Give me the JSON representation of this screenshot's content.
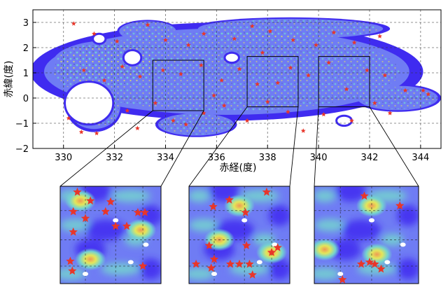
{
  "chart_data": {
    "type": "heatmap",
    "title": "",
    "xlabel": "赤経(度)",
    "ylabel": "赤緯(度)",
    "xlim": [
      328.8,
      344.8
    ],
    "ylim": [
      -2,
      3.5
    ],
    "xticks": [
      330,
      332,
      334,
      336,
      338,
      340,
      342,
      344
    ],
    "yticks": [
      -2,
      -1,
      0,
      1,
      2,
      3
    ],
    "grid": true,
    "colormap": [
      "#3f2bf0",
      "#6f7cf4",
      "#74d3cf",
      "#e3e65a",
      "#ef9a55"
    ],
    "marker_color": "#e8362a",
    "footprint_blobs": [
      {
        "cx": 336.4,
        "cy": 1.05,
        "rx": 7.7,
        "ry": 1.95
      },
      {
        "cx": 331.7,
        "cy": 1.35,
        "rx": 2.3,
        "ry": 1.05
      },
      {
        "cx": 331.2,
        "cy": -0.35,
        "rx": 1.1,
        "ry": 1.0
      },
      {
        "cx": 343.1,
        "cy": 0.0,
        "rx": 1.7,
        "ry": 0.55
      },
      {
        "cx": 333.3,
        "cy": 2.65,
        "rx": 1.2,
        "ry": 0.45
      },
      {
        "cx": 338.9,
        "cy": 2.75,
        "rx": 3.9,
        "ry": 0.45
      },
      {
        "cx": 335.2,
        "cy": -1.05,
        "rx": 1.6,
        "ry": 0.5
      }
    ],
    "footprint_holes": [
      {
        "cx": 331.0,
        "cy": -0.2,
        "rx": 0.95,
        "ry": 0.85
      },
      {
        "cx": 332.7,
        "cy": 1.6,
        "rx": 0.35,
        "ry": 0.3
      },
      {
        "cx": 331.4,
        "cy": 2.35,
        "rx": 0.25,
        "ry": 0.2
      },
      {
        "cx": 336.6,
        "cy": 1.6,
        "rx": 0.28,
        "ry": 0.2
      },
      {
        "cx": 341.0,
        "cy": -0.9,
        "rx": 0.3,
        "ry": 0.2
      }
    ],
    "stars": [
      [
        330.4,
        2.95
      ],
      [
        331.2,
        2.55
      ],
      [
        332.1,
        2.25
      ],
      [
        333.3,
        2.9
      ],
      [
        334.0,
        2.3
      ],
      [
        334.9,
        2.1
      ],
      [
        335.5,
        2.55
      ],
      [
        336.7,
        2.35
      ],
      [
        337.4,
        2.85
      ],
      [
        338.1,
        2.65
      ],
      [
        339.0,
        2.3
      ],
      [
        339.9,
        2.1
      ],
      [
        340.6,
        2.6
      ],
      [
        341.4,
        2.2
      ],
      [
        342.4,
        2.45
      ],
      [
        330.8,
        1.1
      ],
      [
        331.6,
        0.7
      ],
      [
        332.3,
        1.25
      ],
      [
        333.0,
        0.85
      ],
      [
        333.9,
        1.1
      ],
      [
        334.6,
        0.95
      ],
      [
        335.4,
        1.3
      ],
      [
        336.2,
        0.7
      ],
      [
        336.9,
        1.15
      ],
      [
        337.6,
        0.55
      ],
      [
        338.4,
        0.6
      ],
      [
        338.9,
        1.2
      ],
      [
        339.6,
        0.9
      ],
      [
        340.4,
        1.4
      ],
      [
        341.1,
        0.35
      ],
      [
        341.9,
        1.1
      ],
      [
        342.6,
        0.9
      ],
      [
        343.4,
        0.3
      ],
      [
        344.1,
        0.3
      ],
      [
        344.3,
        0.15
      ],
      [
        330.2,
        -0.8
      ],
      [
        330.7,
        -1.35
      ],
      [
        331.3,
        -1.4
      ],
      [
        332.5,
        -0.5
      ],
      [
        333.6,
        -0.2
      ],
      [
        334.3,
        -0.9
      ],
      [
        334.8,
        -1.05
      ],
      [
        335.5,
        -0.6
      ],
      [
        336.3,
        -0.3
      ],
      [
        337.2,
        -0.9
      ],
      [
        338.0,
        -0.15
      ],
      [
        338.8,
        -0.55
      ],
      [
        339.4,
        -1.3
      ],
      [
        340.2,
        -0.65
      ],
      [
        341.3,
        -0.9
      ],
      [
        342.2,
        -0.2
      ],
      [
        342.8,
        -0.6
      ],
      [
        332.9,
        -1.2
      ],
      [
        335.9,
        0.1
      ],
      [
        337.8,
        1.8
      ]
    ],
    "zoom_regions": [
      {
        "name": "inset-1",
        "xlim": [
          333.5,
          335.5
        ],
        "ylim": [
          -0.5,
          1.5
        ]
      },
      {
        "name": "inset-2",
        "xlim": [
          337.2,
          339.2
        ],
        "ylim": [
          -0.35,
          1.65
        ]
      },
      {
        "name": "inset-3",
        "xlim": [
          340.0,
          342.0
        ],
        "ylim": [
          -0.35,
          1.65
        ]
      }
    ],
    "insets": [
      {
        "name": "inset-1",
        "hotspots": [
          [
            0.2,
            0.15
          ],
          [
            0.8,
            0.45
          ],
          [
            0.3,
            0.75
          ]
        ],
        "stars": [
          [
            0.17,
            0.06
          ],
          [
            0.3,
            0.15
          ],
          [
            0.13,
            0.26
          ],
          [
            0.45,
            0.26
          ],
          [
            0.5,
            0.16
          ],
          [
            0.25,
            0.33
          ],
          [
            0.13,
            0.47
          ],
          [
            0.55,
            0.41
          ],
          [
            0.77,
            0.27
          ],
          [
            0.84,
            0.27
          ],
          [
            0.66,
            0.41
          ],
          [
            0.1,
            0.77
          ],
          [
            0.12,
            0.87
          ],
          [
            0.82,
            0.82
          ]
        ]
      },
      {
        "name": "inset-2",
        "hotspots": [
          [
            0.82,
            0.68
          ],
          [
            0.3,
            0.55
          ],
          [
            0.5,
            0.2
          ]
        ],
        "stars": [
          [
            0.77,
            0.06
          ],
          [
            0.4,
            0.14
          ],
          [
            0.24,
            0.21
          ],
          [
            0.56,
            0.27
          ],
          [
            0.88,
            0.63
          ],
          [
            0.82,
            0.68
          ],
          [
            0.2,
            0.61
          ],
          [
            0.57,
            0.61
          ],
          [
            0.25,
            0.75
          ],
          [
            0.07,
            0.8
          ],
          [
            0.22,
            0.84
          ],
          [
            0.41,
            0.8
          ],
          [
            0.5,
            0.8
          ],
          [
            0.6,
            0.8
          ],
          [
            0.63,
            0.91
          ]
        ]
      },
      {
        "name": "inset-3",
        "hotspots": [
          [
            0.55,
            0.2
          ],
          [
            0.1,
            0.65
          ],
          [
            0.6,
            0.7
          ]
        ],
        "stars": [
          [
            0.48,
            0.1
          ],
          [
            0.82,
            0.2
          ],
          [
            0.53,
            0.78
          ],
          [
            0.58,
            0.8
          ],
          [
            0.45,
            0.8
          ],
          [
            0.64,
            0.85
          ],
          [
            0.27,
            0.96
          ]
        ]
      }
    ]
  }
}
